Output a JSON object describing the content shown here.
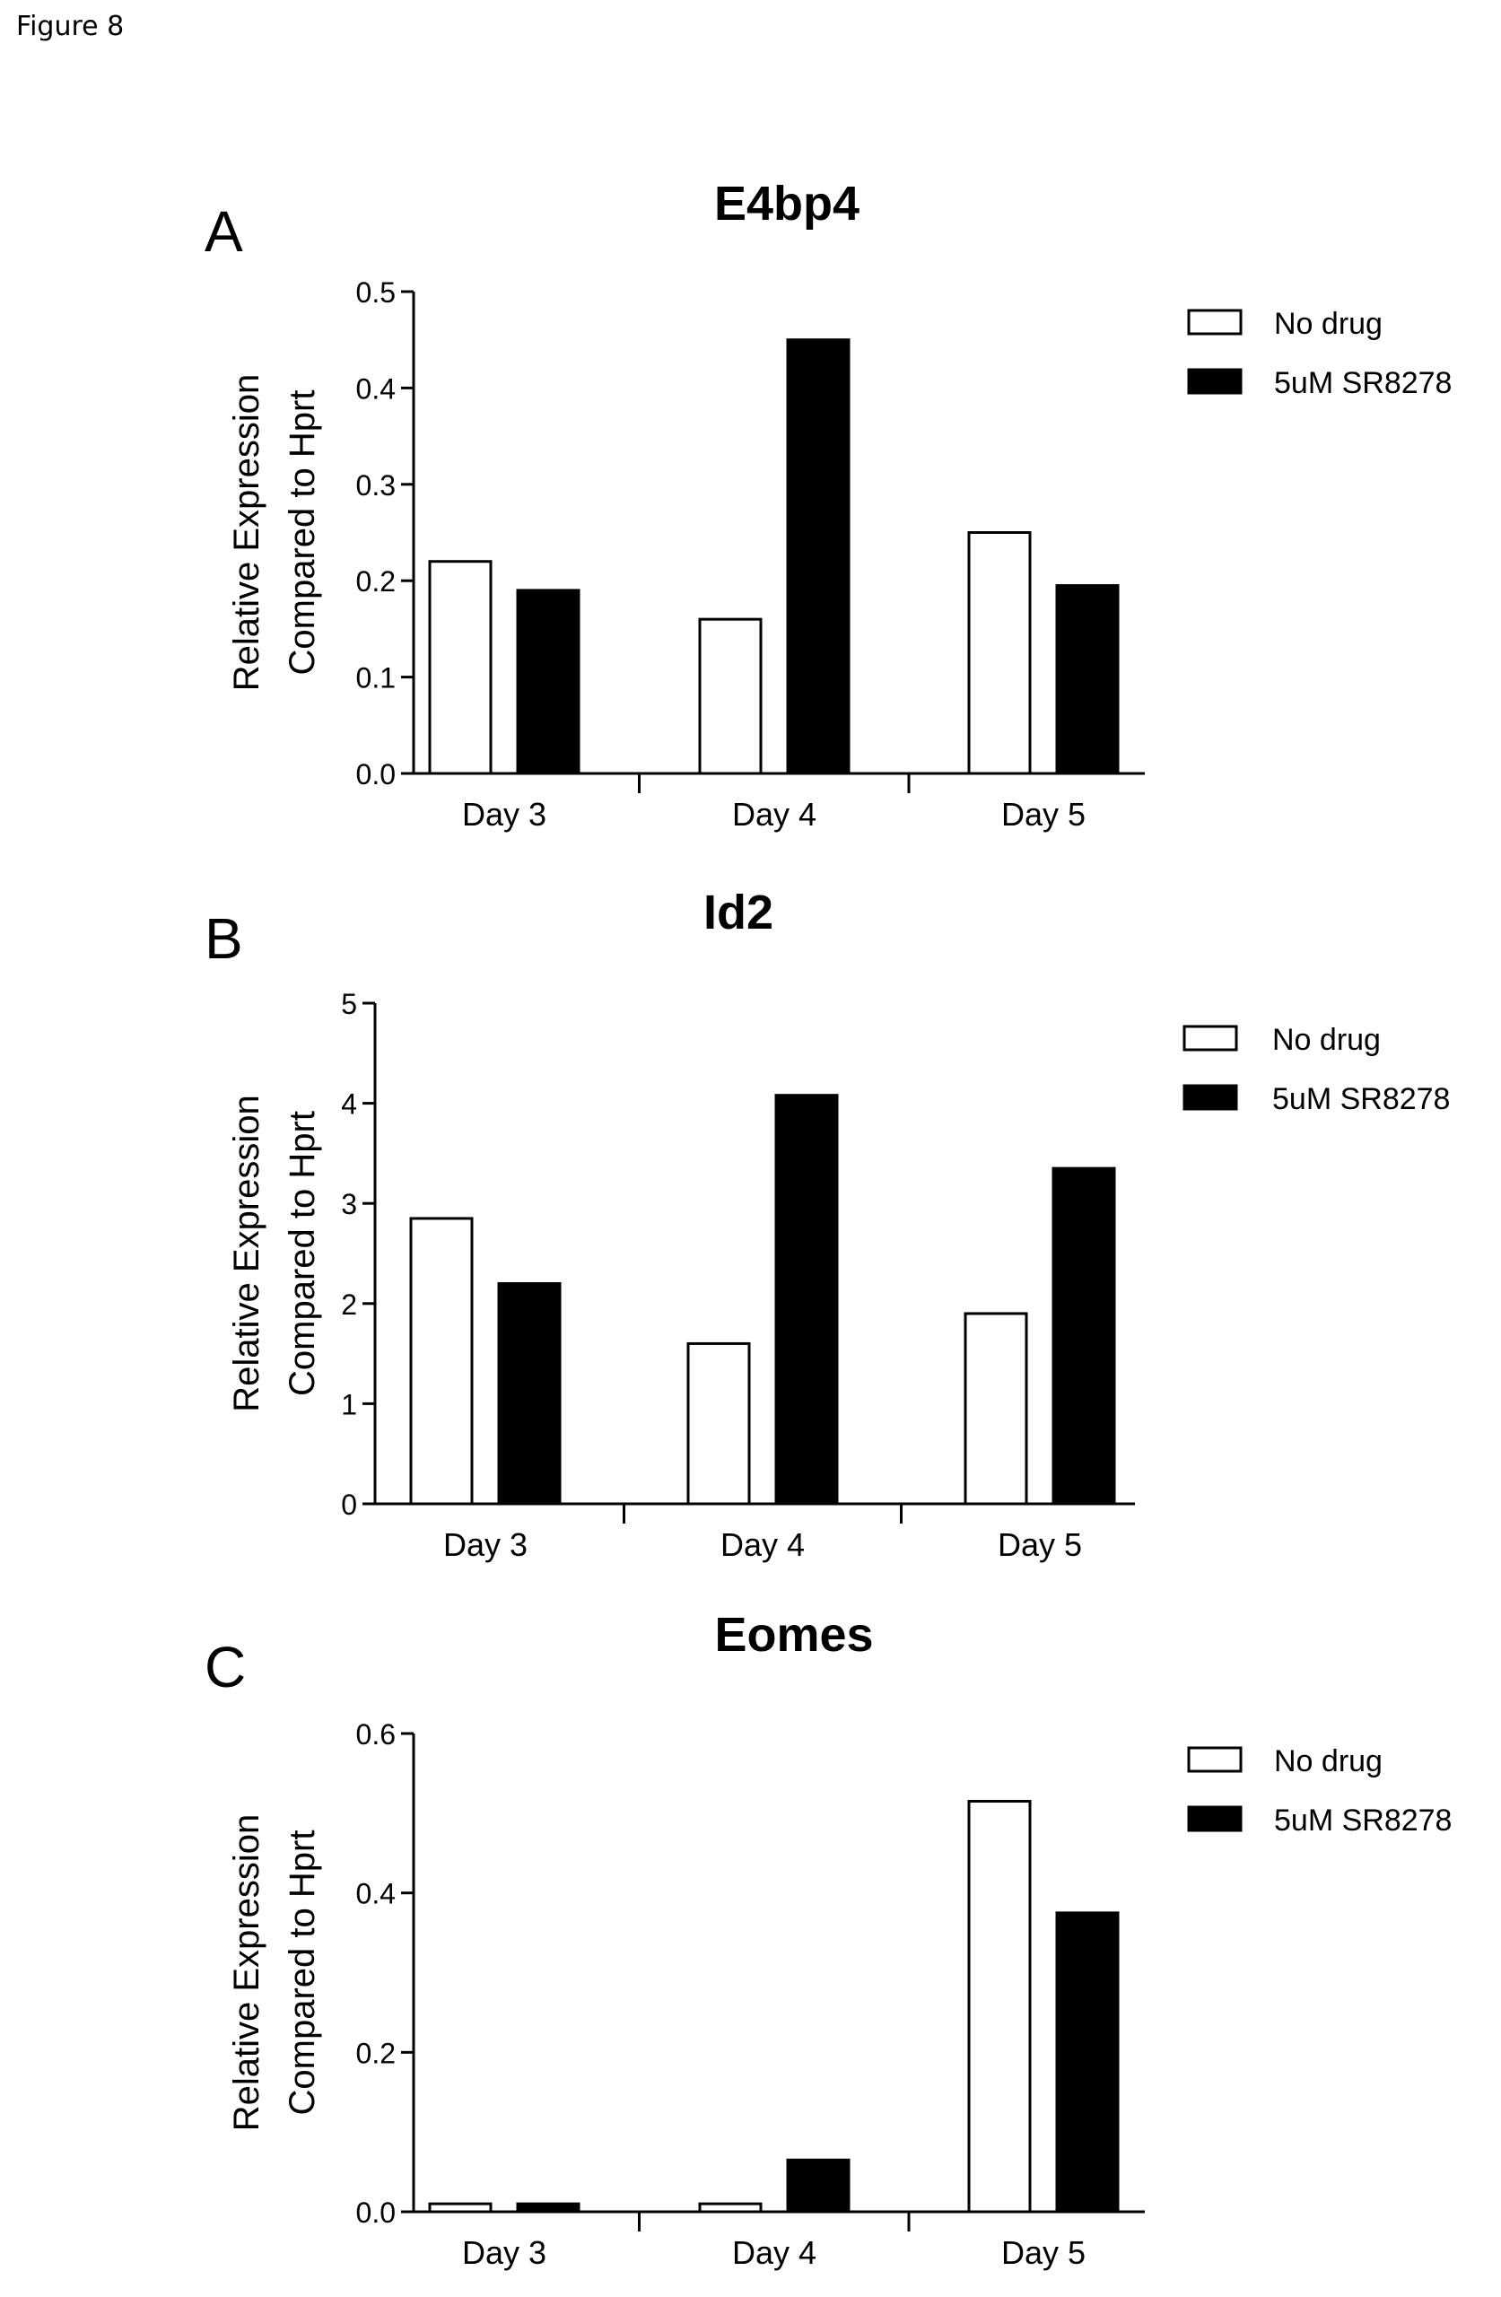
{
  "figure_label": "Figure 8",
  "legend": {
    "no_drug": "No drug",
    "drug": "5uM SR8278"
  },
  "chart_data": [
    {
      "type": "bar",
      "panel": "A",
      "title": "E4bp4",
      "ylabel_line1": "Relative Expression",
      "ylabel_line2": "Compared to Hprt",
      "categories": [
        "Day 3",
        "Day 4",
        "Day 5"
      ],
      "yticks": [
        "0.0",
        "0.1",
        "0.2",
        "0.3",
        "0.4",
        "0.5"
      ],
      "ylim": [
        0,
        0.5
      ],
      "series": [
        {
          "name": "No drug",
          "fill": "#ffffff",
          "values": [
            0.22,
            0.16,
            0.25
          ]
        },
        {
          "name": "5uM SR8278",
          "fill": "#000000",
          "values": [
            0.19,
            0.45,
            0.195
          ]
        }
      ],
      "legend_position": "top-right"
    },
    {
      "type": "bar",
      "panel": "B",
      "title": "Id2",
      "ylabel_line1": "Relative Expression",
      "ylabel_line2": "Compared to Hprt",
      "categories": [
        "Day 3",
        "Day 4",
        "Day 5"
      ],
      "yticks": [
        "0",
        "1",
        "2",
        "3",
        "4",
        "5"
      ],
      "ylim": [
        0,
        5
      ],
      "series": [
        {
          "name": "No drug",
          "fill": "#ffffff",
          "values": [
            2.85,
            1.6,
            1.9
          ]
        },
        {
          "name": "5uM SR8278",
          "fill": "#000000",
          "values": [
            2.2,
            4.08,
            3.35
          ]
        }
      ],
      "legend_position": "top-right"
    },
    {
      "type": "bar",
      "panel": "C",
      "title": "Eomes",
      "ylabel_line1": "Relative Expression",
      "ylabel_line2": "Compared to Hprt",
      "categories": [
        "Day 3",
        "Day 4",
        "Day 5"
      ],
      "yticks": [
        "0.0",
        "0.2",
        "0.4",
        "0.6"
      ],
      "ylim": [
        0,
        0.6
      ],
      "series": [
        {
          "name": "No drug",
          "fill": "#ffffff",
          "values": [
            0.01,
            0.01,
            0.515
          ]
        },
        {
          "name": "5uM SR8278",
          "fill": "#000000",
          "values": [
            0.01,
            0.065,
            0.375
          ]
        }
      ],
      "legend_position": "top-right"
    }
  ]
}
